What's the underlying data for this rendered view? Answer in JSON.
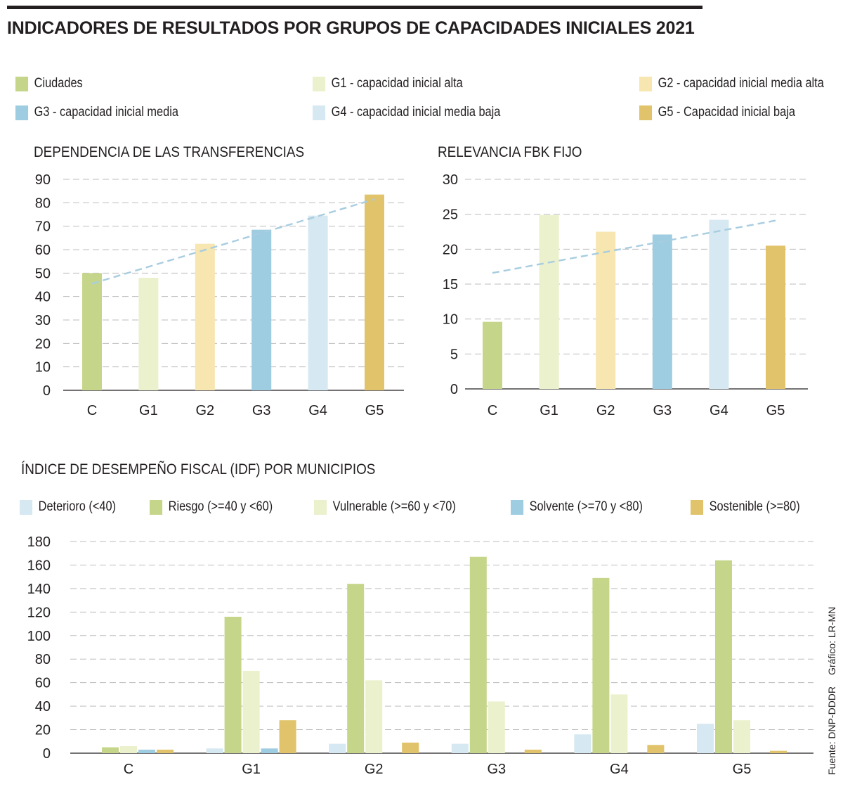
{
  "title": "INDICADORES DE RESULTADOS POR GRUPOS DE CAPACIDADES INICIALES 2021",
  "colors": {
    "ciudades": "#c5d68a",
    "g1": "#ecf1cd",
    "g2": "#f7e6b0",
    "g3": "#9ecce0",
    "g4": "#d6e8f1",
    "g5": "#e0c36a",
    "trend": "#a8cde0",
    "grid": "#bdbdbd"
  },
  "legend_top": [
    {
      "label": "Ciudades",
      "color": "#c5d68a"
    },
    {
      "label": "G1 - capacidad inicial alta",
      "color": "#ecf1cd"
    },
    {
      "label": "G2 - capacidad inicial media alta",
      "color": "#f7e6b0"
    },
    {
      "label": "G3 - capacidad inicial media",
      "color": "#9ecce0"
    },
    {
      "label": "G4 - capacidad inicial media baja",
      "color": "#d6e8f1"
    },
    {
      "label": "G5 - Capacidad inicial baja",
      "color": "#e0c36a"
    }
  ],
  "legend_bottom": [
    {
      "label": "Deterioro (<40)",
      "color": "#d6e8f1"
    },
    {
      "label": "Riesgo (>=40 y <60)",
      "color": "#c5d68a"
    },
    {
      "label": "Vulnerable (>=60 y <70)",
      "color": "#ecf1cd"
    },
    {
      "label": "Solvente (>=70 y <80)",
      "color": "#9ecce0"
    },
    {
      "label": "Sostenible (>=80)",
      "color": "#e0c36a"
    }
  ],
  "credits": {
    "grafico": "Gráfico: LR-MN",
    "fuente": "Fuente: DNP-DDDR"
  },
  "chart_data": [
    {
      "type": "bar",
      "title": "DEPENDENCIA DE LAS TRANSFERENCIAS",
      "categories": [
        "C",
        "G1",
        "G2",
        "G3",
        "G4",
        "G5"
      ],
      "values": [
        50,
        48,
        62.5,
        68.5,
        74.5,
        83.5
      ],
      "colors": [
        "#c5d68a",
        "#ecf1cd",
        "#f7e6b0",
        "#9ecce0",
        "#d6e8f1",
        "#e0c36a"
      ],
      "ylim": [
        0,
        90
      ],
      "yticks": [
        0,
        10,
        20,
        30,
        40,
        50,
        60,
        70,
        80,
        90
      ],
      "trendline": {
        "start": 45.5,
        "end": 81.5
      },
      "grid": true
    },
    {
      "type": "bar",
      "title": "RELEVANCIA FBK FIJO",
      "categories": [
        "C",
        "G1",
        "G2",
        "G3",
        "G4",
        "G5"
      ],
      "values": [
        9.6,
        24.9,
        22.5,
        22.1,
        24.2,
        20.5
      ],
      "colors": [
        "#c5d68a",
        "#ecf1cd",
        "#f7e6b0",
        "#9ecce0",
        "#d6e8f1",
        "#e0c36a"
      ],
      "ylim": [
        0,
        30
      ],
      "yticks": [
        0,
        5,
        10,
        15,
        20,
        25,
        30
      ],
      "trendline": {
        "start": 16.6,
        "end": 24.1
      },
      "grid": true
    },
    {
      "type": "bar",
      "title": "ÍNDICE DE DESEMPEÑO FISCAL (IDF) POR MUNICIPIOS",
      "categories": [
        "C",
        "G1",
        "G2",
        "G3",
        "G4",
        "G5"
      ],
      "series": [
        {
          "name": "Deterioro (<40)",
          "color": "#d6e8f1",
          "values": [
            0,
            4,
            8,
            8,
            16,
            25
          ]
        },
        {
          "name": "Riesgo (>=40 y <60)",
          "color": "#c5d68a",
          "values": [
            5,
            116,
            144,
            167,
            149,
            164
          ]
        },
        {
          "name": "Vulnerable (>=60 y <70)",
          "color": "#ecf1cd",
          "values": [
            6,
            70,
            62,
            44,
            50,
            28
          ]
        },
        {
          "name": "Solvente (>=70 y <80)",
          "color": "#9ecce0",
          "values": [
            3,
            4,
            0,
            0,
            0,
            0
          ]
        },
        {
          "name": "Sostenible (>=80)",
          "color": "#e0c36a",
          "values": [
            3,
            28,
            9,
            3,
            7,
            2
          ]
        }
      ],
      "ylim": [
        0,
        180
      ],
      "yticks": [
        0,
        20,
        40,
        60,
        80,
        100,
        120,
        140,
        160,
        180
      ],
      "grid": true
    }
  ]
}
